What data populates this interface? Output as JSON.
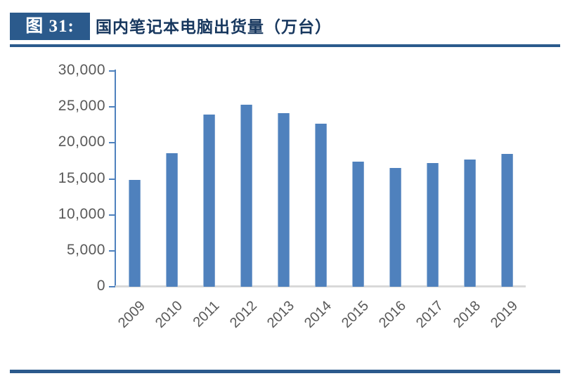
{
  "header": {
    "badge": "图 31:",
    "title": "国内笔记本电脑出货量（万台）"
  },
  "chart_data": {
    "type": "bar",
    "title": "国内笔记本电脑出货量（万台）",
    "categories": [
      "2009",
      "2010",
      "2011",
      "2012",
      "2013",
      "2014",
      "2015",
      "2016",
      "2017",
      "2018",
      "2019"
    ],
    "values": [
      14900,
      18600,
      23900,
      25300,
      24100,
      22700,
      17400,
      16500,
      17200,
      17700,
      18500
    ],
    "xlabel": "",
    "ylabel": "",
    "ylim": [
      0,
      30000
    ],
    "ytick_step": 5000,
    "ytick_labels": [
      "0",
      "5,000",
      "10,000",
      "15,000",
      "20,000",
      "25,000",
      "30,000"
    ],
    "grid": false,
    "legend": false,
    "x_label_rotation_deg": 45
  },
  "colors": {
    "accent_blue": "#2B5A8C",
    "title_navy": "#17375E",
    "bar_blue": "#4F81BD",
    "axis_blue": "#4F81BD",
    "baseline_gray": "#D9D9D9",
    "tick_label_gray": "#595959"
  }
}
